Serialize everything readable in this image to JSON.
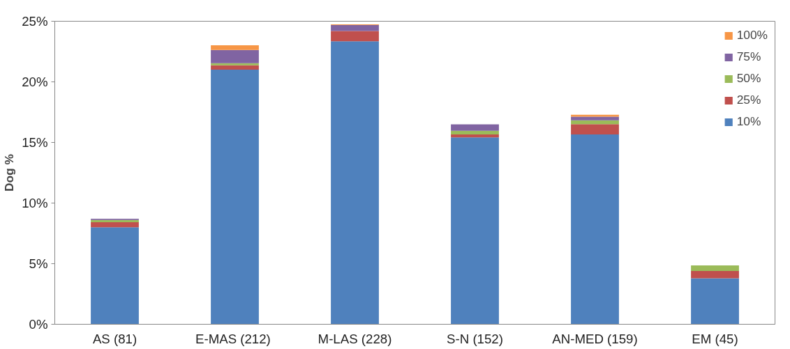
{
  "chart_data": {
    "type": "bar",
    "stacked": true,
    "ylabel": "Dog %",
    "categories": [
      "AS (81)",
      "E-MAS  (212)",
      "M-LAS (228)",
      "S-N (152)",
      "AN-MED (159)",
      "EM (45)"
    ],
    "series": [
      {
        "name": "10%",
        "color": "#4f81bd",
        "values": [
          8.0,
          21.0,
          23.35,
          15.42,
          15.66,
          3.8
        ]
      },
      {
        "name": "25%",
        "color": "#c0504d",
        "values": [
          0.42,
          0.36,
          0.85,
          0.24,
          0.85,
          0.6
        ]
      },
      {
        "name": "50%",
        "color": "#9bbb59",
        "values": [
          0.18,
          0.18,
          0,
          0.3,
          0.32,
          0.46
        ]
      },
      {
        "name": "75%",
        "color": "#8064a2",
        "values": [
          0.1,
          1.09,
          0.48,
          0.54,
          0.3,
          0
        ]
      },
      {
        "name": "100%",
        "color": "#f79646",
        "values": [
          0,
          0.39,
          0.06,
          0,
          0.16,
          0
        ]
      }
    ],
    "ylim": [
      0,
      25
    ],
    "yticks": [
      {
        "value": 0,
        "label": "0%"
      },
      {
        "value": 5,
        "label": "5%"
      },
      {
        "value": 10,
        "label": "10%"
      },
      {
        "value": 15,
        "label": "15%"
      },
      {
        "value": 20,
        "label": "20%"
      },
      {
        "value": 25,
        "label": "25%"
      }
    ],
    "grid": false,
    "legend": "top right"
  }
}
